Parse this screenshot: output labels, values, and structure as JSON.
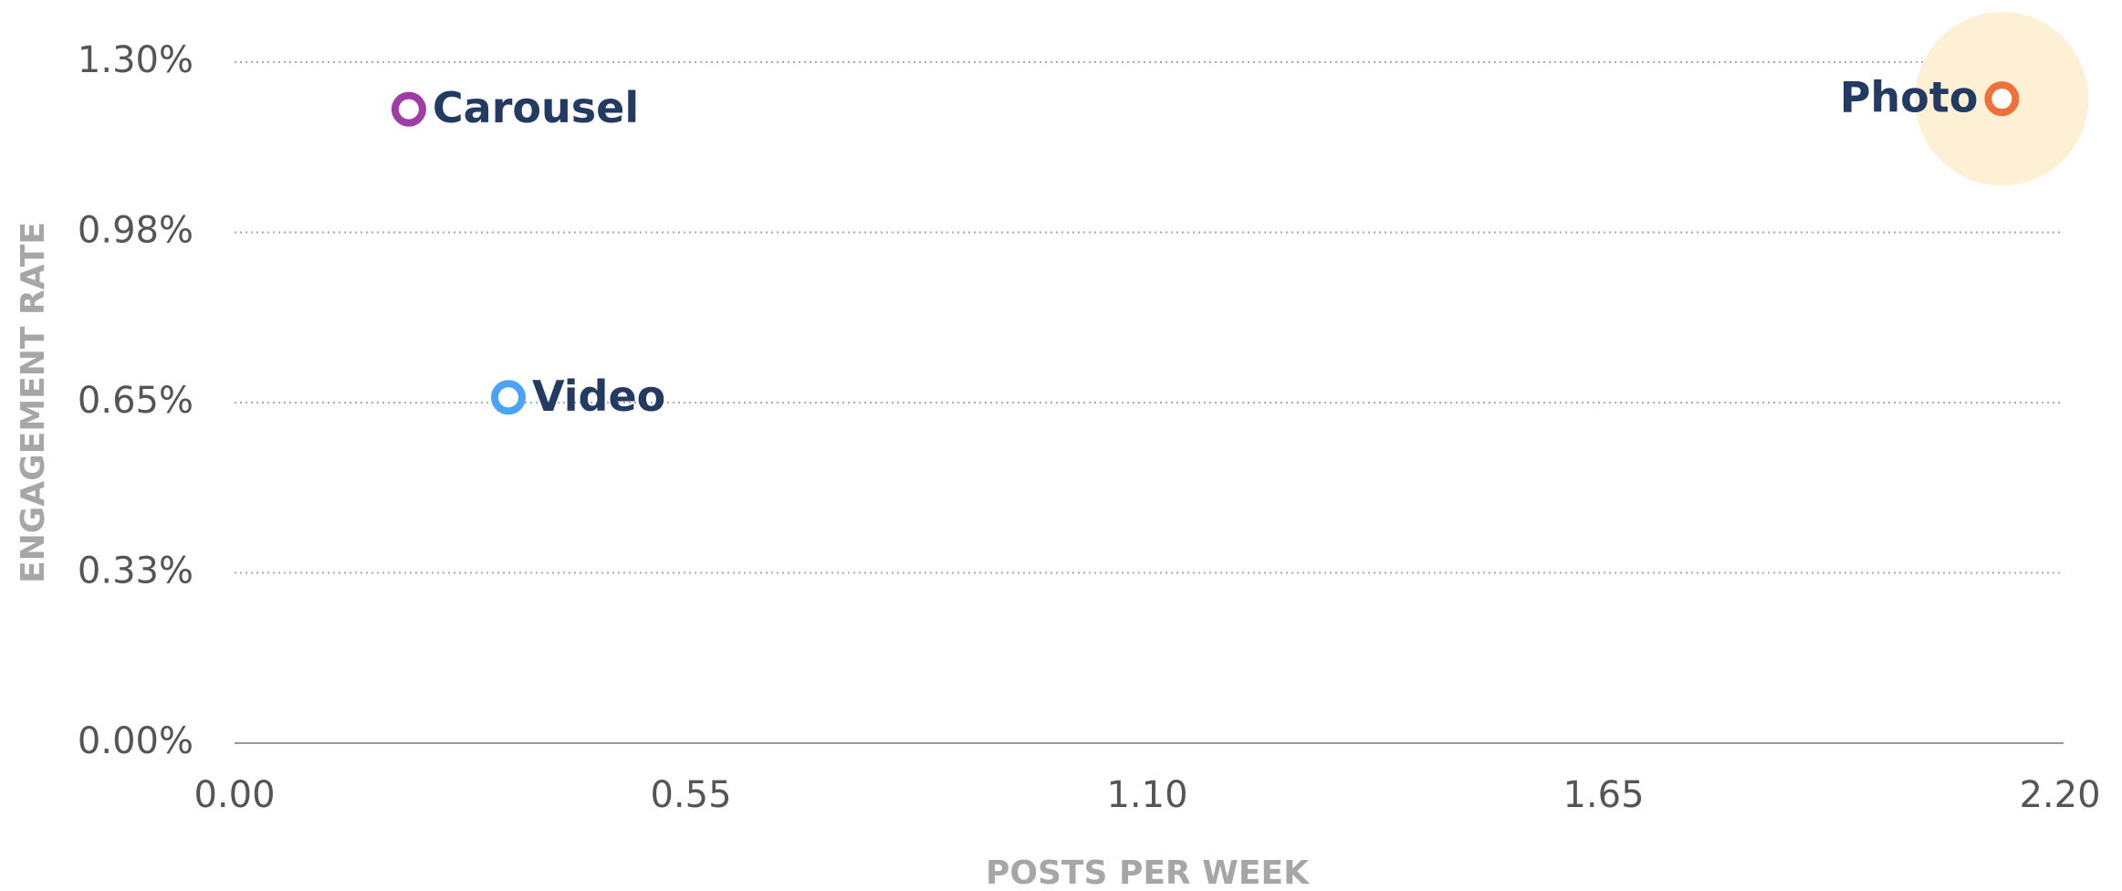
{
  "chart_data": {
    "type": "scatter",
    "xlabel": "POSTS PER WEEK",
    "ylabel": "ENGAGEMENT RATE",
    "xlim": [
      0,
      2.2
    ],
    "ylim": [
      0,
      1.3
    ],
    "xticks": [
      {
        "value": 0,
        "label": "0.00"
      },
      {
        "value": 0.55,
        "label": "0.55"
      },
      {
        "value": 1.1,
        "label": "1.10"
      },
      {
        "value": 1.65,
        "label": "1.65"
      },
      {
        "value": 2.2,
        "label": "2.20"
      }
    ],
    "yticks": [
      {
        "value": 0,
        "label": "0.00%"
      },
      {
        "value": 0.325,
        "label": "0.33%"
      },
      {
        "value": 0.65,
        "label": "0.65%"
      },
      {
        "value": 0.975,
        "label": "0.98%"
      },
      {
        "value": 1.3,
        "label": "1.30%"
      }
    ],
    "grid": true,
    "series": [
      {
        "name": "Carousel",
        "color": "#a03ca8",
        "x": [
          0.21
        ],
        "values": [
          1.21
        ]
      },
      {
        "name": "Video",
        "color": "#4aa3f5",
        "x": [
          0.33
        ],
        "values": [
          0.66
        ]
      },
      {
        "name": "Photo",
        "color": "#f0703c",
        "x": [
          2.13
        ],
        "values": [
          1.23
        ],
        "highlighted": true
      }
    ]
  }
}
